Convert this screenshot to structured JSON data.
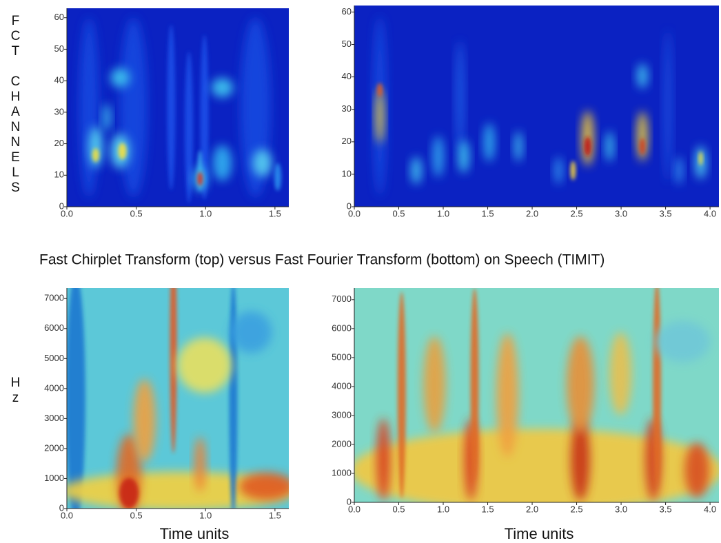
{
  "title": "Fast Chirplet Transform (top) versus Fast Fourier Transform (bottom) on Speech (TIMIT)",
  "chart_data": [
    {
      "type": "heatmap",
      "y_label": "FCT CHANNELS",
      "xlim": [
        0,
        1.6
      ],
      "ylim": [
        0,
        63
      ],
      "xticks": [
        {
          "value": 0,
          "label": "0.0"
        },
        0.5,
        {
          "value": 1,
          "label": "1.0"
        },
        1.5
      ],
      "yticks": [
        0,
        10,
        20,
        30,
        40,
        50,
        60
      ]
    },
    {
      "type": "heatmap",
      "xlim": [
        0,
        4.1
      ],
      "ylim": [
        0,
        62
      ],
      "xticks": [
        {
          "value": 0,
          "label": "0.0"
        },
        0.5,
        {
          "value": 1,
          "label": "1.0"
        },
        1.5,
        {
          "value": 2,
          "label": "2.0"
        },
        2.5,
        {
          "value": 3,
          "label": "3.0"
        },
        3.5,
        {
          "value": 4,
          "label": "4.0"
        }
      ],
      "yticks": [
        0,
        10,
        20,
        30,
        40,
        50,
        60
      ]
    },
    {
      "type": "heatmap",
      "y_label": "Hz",
      "x_label": "Time units",
      "xlim": [
        0,
        1.6
      ],
      "ylim": [
        0,
        7350
      ],
      "xticks": [
        {
          "value": 0,
          "label": "0.0"
        },
        0.5,
        {
          "value": 1,
          "label": "1.0"
        },
        1.5
      ],
      "yticks": [
        0,
        1000,
        2000,
        3000,
        4000,
        5000,
        6000,
        7000
      ]
    },
    {
      "type": "heatmap",
      "x_label": "Time units",
      "xlim": [
        0,
        4.1
      ],
      "ylim": [
        0,
        7400
      ],
      "xticks": [
        {
          "value": 0,
          "label": "0.0"
        },
        0.5,
        {
          "value": 1,
          "label": "1.0"
        },
        1.5,
        {
          "value": 2,
          "label": "2.0"
        },
        2.5,
        {
          "value": 3,
          "label": "3.0"
        },
        3.5,
        {
          "value": 4,
          "label": "4.0"
        }
      ],
      "yticks": [
        0,
        1000,
        2000,
        3000,
        4000,
        5000,
        6000,
        7000
      ]
    }
  ]
}
